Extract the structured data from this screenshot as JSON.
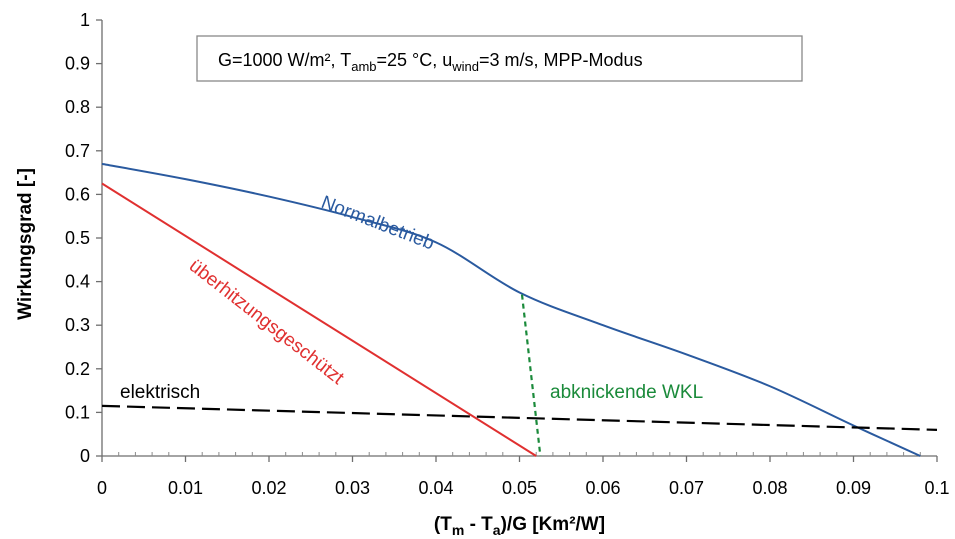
{
  "chart_data": {
    "type": "line",
    "xlabel_parts": [
      "(T",
      "m",
      " - T",
      "a",
      ")/G [Km²/W]"
    ],
    "ylabel": "Wirkungsgrad [-]",
    "xlim": [
      0,
      0.1
    ],
    "ylim": [
      0,
      1
    ],
    "x_ticks": [
      "0",
      "0.01",
      "0.02",
      "0.03",
      "0.04",
      "0.05",
      "0.06",
      "0.07",
      "0.08",
      "0.09",
      "0.1"
    ],
    "y_ticks": [
      "0",
      "0.1",
      "0.2",
      "0.3",
      "0.4",
      "0.5",
      "0.6",
      "0.7",
      "0.8",
      "0.9",
      "1"
    ],
    "grid": false,
    "info_parts": [
      "G=1000 W/m², T",
      "amb",
      "=25 °C, u",
      "wind",
      "=3 m/s, MPP-Modus"
    ],
    "series": [
      {
        "label": "Normalbetrieb",
        "color": "#2a5a9f",
        "dash": "solid",
        "points": [
          [
            0,
            0.67
          ],
          [
            0.01,
            0.635
          ],
          [
            0.02,
            0.595
          ],
          [
            0.03,
            0.548
          ],
          [
            0.04,
            0.49
          ],
          [
            0.05,
            0.375
          ],
          [
            0.06,
            0.3
          ],
          [
            0.07,
            0.233
          ],
          [
            0.08,
            0.16
          ],
          [
            0.09,
            0.07
          ],
          [
            0.098,
            0.0
          ]
        ]
      },
      {
        "label": "überhitzungsgeschützt",
        "color": "#e03030",
        "dash": "solid",
        "points": [
          [
            0,
            0.625
          ],
          [
            0.052,
            0.0
          ]
        ]
      },
      {
        "label": "elektrisch",
        "color": "#000000",
        "dash": "long-dash",
        "points": [
          [
            0,
            0.115
          ],
          [
            0.1,
            0.06
          ]
        ]
      },
      {
        "label": "abknickende WKL",
        "color": "#1a8a3a",
        "dash": "short-dash",
        "points": [
          [
            0.0503,
            0.37
          ],
          [
            0.0525,
            0.0
          ]
        ]
      }
    ]
  }
}
